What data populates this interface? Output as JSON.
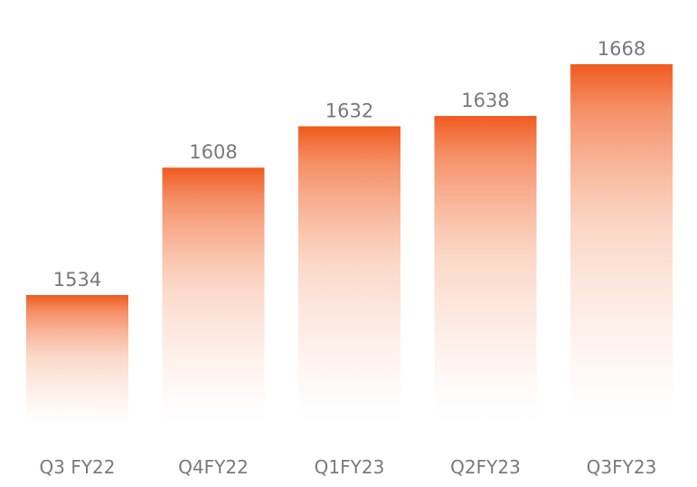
{
  "chart_data": {
    "type": "bar",
    "title": "",
    "xlabel": "",
    "ylabel": "",
    "categories": [
      "Q3 FY22",
      "Q4FY22",
      "Q1FY23",
      "Q2FY23",
      "Q3FY23"
    ],
    "values": [
      1534,
      1608,
      1632,
      1638,
      1668
    ],
    "data_labels": [
      "1534",
      "1608",
      "1632",
      "1638",
      "1668"
    ],
    "grid": false,
    "legend": "none",
    "colors": {
      "bar_top": "#F05A1E",
      "bar_bottom": "#FFFFFF",
      "value_label": "#7A7A7A",
      "category_label": "#7A7A7A"
    }
  }
}
